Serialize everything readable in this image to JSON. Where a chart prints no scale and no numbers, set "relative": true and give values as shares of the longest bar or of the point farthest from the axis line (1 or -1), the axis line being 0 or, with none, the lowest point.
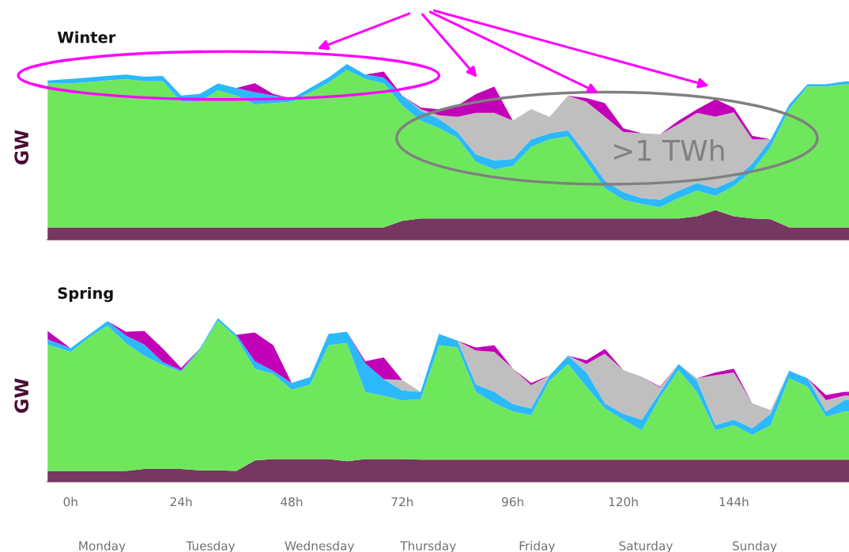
{
  "chart_data": [
    {
      "type": "area",
      "stacked": true,
      "relative": true,
      "title": "Winter",
      "ylabel": "GW",
      "tick_labels": false,
      "xlim": [
        -5,
        169
      ],
      "x": [
        -5,
        0,
        4,
        8,
        12,
        16,
        20,
        24,
        28,
        32,
        36,
        40,
        44,
        48,
        52,
        56,
        60,
        64,
        68,
        72,
        76,
        80,
        84,
        88,
        92,
        96,
        100,
        104,
        108,
        112,
        116,
        120,
        124,
        128,
        132,
        136,
        140,
        144,
        148,
        152,
        156,
        160,
        164,
        168,
        169
      ],
      "series": [
        {
          "color": "#763760",
          "values": [
            0.069,
            0.069,
            0.069,
            0.069,
            0.069,
            0.069,
            0.069,
            0.069,
            0.069,
            0.069,
            0.069,
            0.069,
            0.069,
            0.069,
            0.069,
            0.069,
            0.069,
            0.069,
            0.069,
            0.107,
            0.12,
            0.12,
            0.12,
            0.12,
            0.12,
            0.12,
            0.12,
            0.12,
            0.12,
            0.12,
            0.12,
            0.12,
            0.12,
            0.12,
            0.12,
            0.133,
            0.167,
            0.133,
            0.12,
            0.116,
            0.069,
            0.069,
            0.069,
            0.069,
            0.069
          ]
        },
        {
          "color": "#6fe75c",
          "values": [
            0.82,
            0.82,
            0.828,
            0.837,
            0.845,
            0.833,
            0.833,
            0.717,
            0.717,
            0.781,
            0.751,
            0.7,
            0.708,
            0.717,
            0.768,
            0.824,
            0.897,
            0.845,
            0.82,
            0.657,
            0.558,
            0.515,
            0.459,
            0.322,
            0.279,
            0.3,
            0.408,
            0.451,
            0.468,
            0.322,
            0.172,
            0.107,
            0.082,
            0.064,
            0.116,
            0.146,
            0.082,
            0.172,
            0.27,
            0.412,
            0.674,
            0.803,
            0.803,
            0.815,
            0.815
          ]
        },
        {
          "color": "#2bb9fb",
          "values": [
            0.017,
            0.026,
            0.026,
            0.026,
            0.026,
            0.026,
            0.03,
            0.034,
            0.043,
            0.039,
            0.043,
            0.069,
            0.043,
            0.017,
            0.026,
            0.03,
            0.034,
            0.026,
            0.034,
            0.056,
            0.056,
            0.052,
            0.034,
            0.043,
            0.052,
            0.039,
            0.043,
            0.034,
            0.034,
            0.043,
            0.043,
            0.043,
            0.034,
            0.043,
            0.043,
            0.043,
            0.043,
            0.034,
            0.043,
            0.043,
            0.026,
            0.013,
            0.013,
            0.017,
            0.017
          ]
        },
        {
          "color": "#bfbfbf",
          "values": [
            0,
            0,
            0,
            0,
            0,
            0,
            0,
            0,
            0,
            0,
            0,
            0,
            0,
            0,
            0,
            0,
            0,
            0,
            0,
            0,
            0.009,
            0.021,
            0.086,
            0.236,
            0.27,
            0.219,
            0.172,
            0.094,
            0.197,
            0.3,
            0.365,
            0.343,
            0.369,
            0.373,
            0.378,
            0.399,
            0.408,
            0.386,
            0.137,
            0,
            0,
            0,
            0,
            0,
            0
          ]
        },
        {
          "color": "#c200b8",
          "values": [
            0,
            0,
            0,
            0,
            0,
            0,
            0,
            0,
            0,
            0,
            0,
            0.052,
            0.009,
            0,
            0,
            0,
            0,
            0,
            0.034,
            0,
            0.009,
            0.034,
            0.064,
            0.107,
            0.15,
            0,
            0,
            0,
            0,
            0.021,
            0.077,
            0.021,
            0,
            0,
            0.021,
            0.021,
            0.099,
            0.026,
            0.021,
            0,
            0,
            0,
            0,
            0,
            0
          ]
        }
      ],
      "annotations": [
        ">1 TWh"
      ]
    },
    {
      "type": "area",
      "stacked": true,
      "relative": true,
      "title": "Spring",
      "ylabel": "GW",
      "tick_labels": "x",
      "xlim": [
        -5,
        169
      ],
      "xticks": [
        {
          "value": 0,
          "label": "0h"
        },
        {
          "value": 24,
          "label": "24h"
        },
        {
          "value": 48,
          "label": "48h"
        },
        {
          "value": 72,
          "label": "72h"
        },
        {
          "value": 96,
          "label": "96h"
        },
        {
          "value": 120,
          "label": "120h"
        },
        {
          "value": 144,
          "label": "144h"
        }
      ],
      "annotations": [
        "Monday",
        "Tuesday",
        "Wednesday",
        "Thursday",
        "Friday",
        "Saturday",
        "Sunday"
      ],
      "x": [
        -5,
        0,
        4,
        8,
        12,
        16,
        20,
        24,
        28,
        32,
        36,
        40,
        44,
        48,
        52,
        56,
        60,
        64,
        68,
        72,
        76,
        80,
        84,
        88,
        92,
        96,
        100,
        104,
        108,
        112,
        116,
        120,
        124,
        128,
        132,
        136,
        140,
        144,
        148,
        152,
        156,
        160,
        164,
        168,
        169
      ],
      "series": [
        {
          "color": "#763760",
          "values": [
            0.065,
            0.065,
            0.065,
            0.065,
            0.065,
            0.078,
            0.078,
            0.078,
            0.069,
            0.069,
            0.065,
            0.129,
            0.138,
            0.138,
            0.138,
            0.138,
            0.124,
            0.138,
            0.138,
            0.138,
            0.134,
            0.134,
            0.134,
            0.134,
            0.134,
            0.134,
            0.134,
            0.134,
            0.134,
            0.134,
            0.134,
            0.134,
            0.134,
            0.134,
            0.134,
            0.134,
            0.134,
            0.134,
            0.134,
            0.134,
            0.134,
            0.134,
            0.134,
            0.134,
            0.134
          ]
        },
        {
          "color": "#6fe75c",
          "values": [
            0.774,
            0.728,
            0.816,
            0.889,
            0.783,
            0.691,
            0.636,
            0.594,
            0.733,
            0.917,
            0.816,
            0.562,
            0.521,
            0.424,
            0.456,
            0.696,
            0.724,
            0.41,
            0.387,
            0.359,
            0.369,
            0.7,
            0.687,
            0.415,
            0.346,
            0.295,
            0.272,
            0.484,
            0.585,
            0.447,
            0.313,
            0.244,
            0.18,
            0.382,
            0.548,
            0.415,
            0.18,
            0.212,
            0.152,
            0.212,
            0.498,
            0.447,
            0.263,
            0.295,
            0.295
          ]
        },
        {
          "color": "#2bb9fb",
          "values": [
            0.032,
            0.023,
            0.018,
            0.028,
            0.046,
            0.069,
            0.018,
            0.009,
            0.009,
            0.014,
            0.018,
            0.046,
            0.018,
            0.041,
            0.046,
            0.069,
            0.069,
            0.175,
            0.101,
            0.06,
            0.046,
            0.069,
            0.041,
            0.046,
            0.069,
            0.046,
            0.041,
            0.032,
            0.051,
            0.088,
            0.032,
            0.037,
            0.065,
            0.032,
            0.037,
            0.069,
            0.032,
            0.032,
            0.041,
            0.069,
            0.046,
            0.051,
            0.032,
            0.069,
            0.069
          ]
        },
        {
          "color": "#bfbfbf",
          "values": [
            0,
            0,
            0,
            0,
            0,
            0,
            0,
            0,
            0,
            0,
            0,
            0,
            0,
            0,
            0,
            0,
            0,
            0,
            0,
            0.065,
            0,
            0,
            0,
            0.207,
            0.244,
            0.217,
            0.143,
            0,
            0,
            0.051,
            0.304,
            0.267,
            0.263,
            0.028,
            0,
            0.014,
            0.304,
            0.29,
            0.152,
            0.023,
            0,
            0,
            0.069,
            0.028,
            0.028
          ]
        },
        {
          "color": "#c200b8",
          "values": [
            0.051,
            0,
            0,
            0,
            0.023,
            0.083,
            0.083,
            0.014,
            0,
            0,
            0,
            0.175,
            0.157,
            0,
            0,
            0,
            0,
            0.014,
            0.134,
            0,
            0,
            0,
            0,
            0.018,
            0.041,
            0,
            0.014,
            0,
            0,
            0.023,
            0.028,
            0,
            0,
            0.005,
            0,
            0,
            0.018,
            0.023,
            0,
            0,
            0,
            0,
            0.032,
            0.023,
            0.023
          ]
        }
      ]
    }
  ]
}
